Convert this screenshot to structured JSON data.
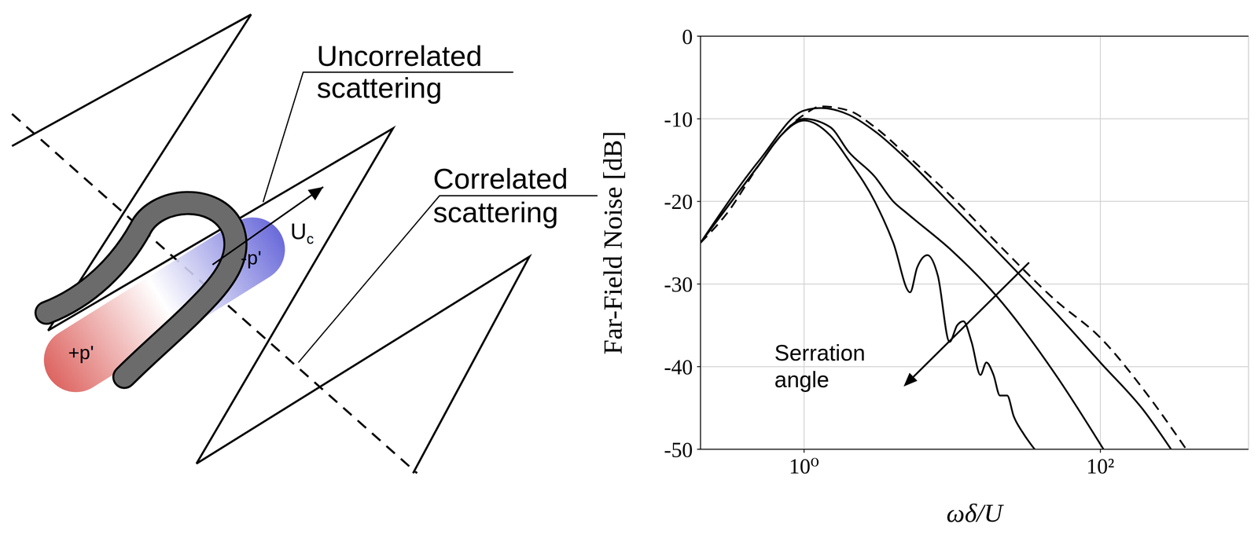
{
  "diagram": {
    "labels": {
      "uncorrelated": "Uncorrelated scattering",
      "correlated": "Correlated scattering",
      "positive_pressure": "+p'",
      "negative_pressure": "-p'",
      "velocity": {
        "symbol": "U",
        "subscript": "c"
      }
    }
  },
  "chart_data": {
    "type": "line",
    "x_label": "ωδ/U",
    "y_label": "Far-Field Noise [dB]",
    "log": "x",
    "grid": true,
    "xlim": [
      0.2,
      1000
    ],
    "xticks": [
      {
        "value": 1,
        "label": "10⁰"
      },
      {
        "value": 100,
        "label": "10²"
      }
    ],
    "ylim": [
      -50,
      0
    ],
    "yticks": [
      -50,
      -40,
      -30,
      -20,
      -10,
      0
    ],
    "series": [
      {
        "color": "#000000",
        "line_style": "dashed",
        "x": [
          0.2,
          0.3,
          0.5,
          0.7,
          1,
          1.3,
          2,
          3,
          5,
          10,
          20,
          50,
          100,
          200,
          380
        ],
        "values": [
          -25,
          -21.5,
          -15.5,
          -12,
          -9.5,
          -8.5,
          -9,
          -11,
          -14.5,
          -19.5,
          -25,
          -32,
          -36.5,
          -43,
          -50
        ]
      },
      {
        "color": "#000000",
        "line_style": "solid",
        "x": [
          0.2,
          0.5,
          1,
          1.3,
          2,
          3,
          5,
          10,
          20,
          50,
          100,
          200,
          300
        ],
        "values": [
          -25,
          -15,
          -9,
          -8.7,
          -9.5,
          -11.5,
          -15,
          -20.5,
          -26,
          -33.5,
          -39.5,
          -45.5,
          -50
        ]
      },
      {
        "color": "#000000",
        "line_style": "solid",
        "x": [
          0.2,
          0.5,
          0.7,
          1,
          1.5,
          2,
          3,
          4,
          5,
          10,
          20,
          50,
          105
        ],
        "values": [
          -25,
          -15.5,
          -12,
          -10,
          -11,
          -14,
          -17,
          -20,
          -21.5,
          -26,
          -31.5,
          -41,
          -50
        ]
      },
      {
        "color": "#000000",
        "line_style": "solid",
        "x": [
          0.2,
          0.5,
          0.7,
          1,
          1.5,
          2,
          3,
          4,
          5.2,
          5.8,
          6.8,
          8,
          9.6,
          10.8,
          11.9,
          13.5,
          15.5,
          17,
          19,
          21,
          23.5,
          26,
          30,
          36
        ],
        "values": [
          -25,
          -15.5,
          -12,
          -10.2,
          -12,
          -15,
          -20,
          -25,
          -31,
          -28,
          -26.5,
          -29,
          -37,
          -35,
          -34.5,
          -37,
          -41,
          -39.5,
          -41,
          -43.5,
          -43.5,
          -46,
          -48,
          -50
        ]
      }
    ],
    "annotations": [
      {
        "text": "Serration angle",
        "arrow_from": [
          33,
          -27.4
        ],
        "arrow_to": [
          4.7,
          -42.4
        ]
      }
    ]
  }
}
